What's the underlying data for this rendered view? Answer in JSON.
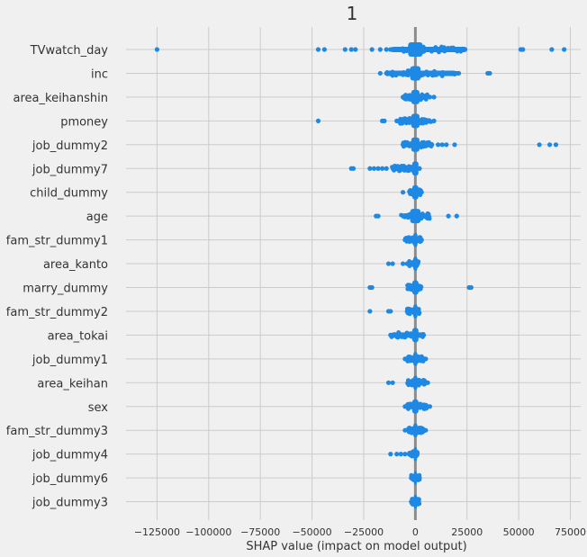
{
  "chart_data": {
    "type": "scatter",
    "title": "1",
    "xlabel": "SHAP value (impact on model output)",
    "ylabel": "",
    "xlim": [
      -140000,
      80000
    ],
    "xticks": [
      -125000,
      -100000,
      -75000,
      -50000,
      -25000,
      0,
      25000,
      50000,
      75000
    ],
    "xtick_labels": [
      "−125000",
      "−100000",
      "−75000",
      "−50000",
      "−25000",
      "0",
      "25000",
      "50000",
      "75000"
    ],
    "grid": true,
    "dot_color": "#1e88e5",
    "background": "#f0f0f0",
    "features": [
      {
        "name": "TVwatch_day",
        "core": [
          -3500,
          3500
        ],
        "spread": [
          -12000,
          25000
        ],
        "points": [
          -125000,
          -47000,
          -44000,
          -34000,
          -31000,
          -29000,
          -21000,
          -17000,
          -14000,
          -12000,
          24000,
          51000,
          52000,
          66000,
          72000
        ]
      },
      {
        "name": "inc",
        "core": [
          -2500,
          2500
        ],
        "spread": [
          -14000,
          20000
        ],
        "points": [
          -17000,
          -14000,
          -9000,
          20000,
          21000,
          35000,
          36000
        ]
      },
      {
        "name": "area_keihanshin",
        "core": [
          -2000,
          2000
        ],
        "spread": [
          -6000,
          6000
        ],
        "points": [
          -6000,
          5000,
          7000,
          9000
        ]
      },
      {
        "name": "pmoney",
        "core": [
          -2000,
          2000
        ],
        "spread": [
          -8000,
          8000
        ],
        "points": [
          -47000,
          -16000,
          -15000,
          -9000,
          -8000,
          6000,
          9000
        ]
      },
      {
        "name": "job_dummy2",
        "core": [
          -2000,
          2000
        ],
        "spread": [
          -6000,
          8000
        ],
        "points": [
          -6000,
          8000,
          11000,
          13000,
          15000,
          19000,
          60000,
          65000,
          68000
        ]
      },
      {
        "name": "job_dummy7",
        "core": [
          -1500,
          1500
        ],
        "spread": [
          -12000,
          0
        ],
        "points": [
          -31000,
          -30000,
          -22000,
          -20000,
          -18000,
          -16000,
          -14000,
          2000
        ]
      },
      {
        "name": "child_dummy",
        "core": [
          -1500,
          1500
        ],
        "spread": [
          -3000,
          3000
        ],
        "points": [
          -6000,
          3000
        ]
      },
      {
        "name": "age",
        "core": [
          -2500,
          2500
        ],
        "spread": [
          -7000,
          7000
        ],
        "points": [
          -19000,
          -18000,
          16000,
          20000
        ]
      },
      {
        "name": "fam_str_dummy1",
        "core": [
          -1000,
          1000
        ],
        "spread": [
          -5000,
          3000
        ],
        "points": [
          -5000,
          3000
        ]
      },
      {
        "name": "area_kanto",
        "core": [
          -1000,
          1000
        ],
        "spread": [
          -3000,
          2000
        ],
        "points": [
          -13000,
          -11000,
          -6000,
          -4000
        ]
      },
      {
        "name": "marry_dummy",
        "core": [
          -1500,
          1500
        ],
        "spread": [
          -4000,
          3000
        ],
        "points": [
          -22000,
          -21000,
          26000,
          27000
        ]
      },
      {
        "name": "fam_str_dummy2",
        "core": [
          -1000,
          1000
        ],
        "spread": [
          -4000,
          2000
        ],
        "points": [
          -22000,
          -13000,
          -12000,
          -4000
        ]
      },
      {
        "name": "area_tokai",
        "core": [
          -1500,
          1500
        ],
        "spread": [
          -12000,
          5000
        ],
        "points": [
          -12000,
          -9000,
          4000
        ]
      },
      {
        "name": "job_dummy1",
        "core": [
          -1000,
          1000
        ],
        "spread": [
          -4000,
          4000
        ],
        "points": [
          -5000,
          5000
        ]
      },
      {
        "name": "area_keihan",
        "core": [
          -1000,
          1000
        ],
        "spread": [
          -4000,
          5000
        ],
        "points": [
          -13000,
          -11000,
          6000
        ]
      },
      {
        "name": "sex",
        "core": [
          -1500,
          1500
        ],
        "spread": [
          -4000,
          6000
        ],
        "points": [
          -5000,
          7000
        ]
      },
      {
        "name": "fam_str_dummy3",
        "core": [
          -1000,
          1000
        ],
        "spread": [
          -4000,
          4000
        ],
        "points": [
          -5000,
          5000
        ]
      },
      {
        "name": "job_dummy4",
        "core": [
          -800,
          800
        ],
        "spread": [
          -3000,
          1000
        ],
        "points": [
          -12000,
          -9000,
          -7000,
          -5000,
          -3000
        ]
      },
      {
        "name": "job_dummy6",
        "core": [
          -700,
          700
        ],
        "spread": [
          -2000,
          2000
        ],
        "points": [
          -2000,
          2000
        ]
      },
      {
        "name": "job_dummy3",
        "core": [
          -800,
          800
        ],
        "spread": [
          -2000,
          2000
        ],
        "points": [
          -2000,
          1000
        ]
      }
    ]
  }
}
